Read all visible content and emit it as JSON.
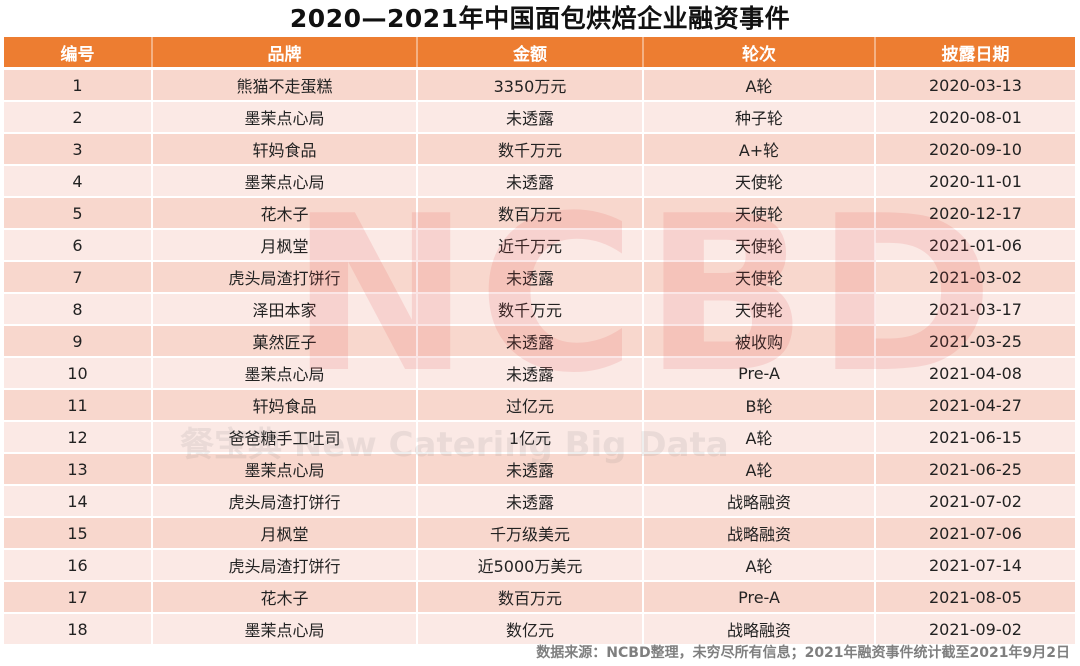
{
  "title": "2020—2021年中国面包烘焙企业融资事件",
  "table": {
    "headers": [
      "编号",
      "品牌",
      "金额",
      "轮次",
      "披露日期"
    ],
    "rows": [
      [
        "1",
        "熊猫不走蛋糕",
        "3350万元",
        "A轮",
        "2020-03-13"
      ],
      [
        "2",
        "墨茉点心局",
        "未透露",
        "种子轮",
        "2020-08-01"
      ],
      [
        "3",
        "轩妈食品",
        "数千万元",
        "A+轮",
        "2020-09-10"
      ],
      [
        "4",
        "墨茉点心局",
        "未透露",
        "天使轮",
        "2020-11-01"
      ],
      [
        "5",
        "花木子",
        "数百万元",
        "天使轮",
        "2020-12-17"
      ],
      [
        "6",
        "月枫堂",
        "近千万元",
        "天使轮",
        "2021-01-06"
      ],
      [
        "7",
        "虎头局渣打饼行",
        "未透露",
        "天使轮",
        "2021-03-02"
      ],
      [
        "8",
        "泽田本家",
        "数千万元",
        "天使轮",
        "2021-03-17"
      ],
      [
        "9",
        "菓然匠子",
        "未透露",
        "被收购",
        "2021-03-25"
      ],
      [
        "10",
        "墨茉点心局",
        "未透露",
        "Pre-A",
        "2021-04-08"
      ],
      [
        "11",
        "轩妈食品",
        "过亿元",
        "B轮",
        "2021-04-27"
      ],
      [
        "12",
        "爸爸糖手工吐司",
        "1亿元",
        "A轮",
        "2021-06-15"
      ],
      [
        "13",
        "墨茉点心局",
        "未透露",
        "A轮",
        "2021-06-25"
      ],
      [
        "14",
        "虎头局渣打饼行",
        "未透露",
        "战略融资",
        "2021-07-02"
      ],
      [
        "15",
        "月枫堂",
        "千万级美元",
        "战略融资",
        "2021-07-06"
      ],
      [
        "16",
        "虎头局渣打饼行",
        "近5000万美元",
        "A轮",
        "2021-07-14"
      ],
      [
        "17",
        "花木子",
        "数百万元",
        "Pre-A",
        "2021-08-05"
      ],
      [
        "18",
        "墨茉点心局",
        "数亿元",
        "战略融资",
        "2021-09-02"
      ]
    ]
  },
  "watermark": {
    "letters": "NCBD",
    "text": "餐宝典 New Catering Big Data"
  },
  "footer": "数据来源：NCBD整理，未穷尽所有信息；2021年融资事件统计截至2021年9月2日",
  "colors": {
    "header_bg": "#ed7d31",
    "row_odd": "#f8d7cd",
    "row_even": "#fbe9e5",
    "footer_text": "#7f7f7f"
  }
}
